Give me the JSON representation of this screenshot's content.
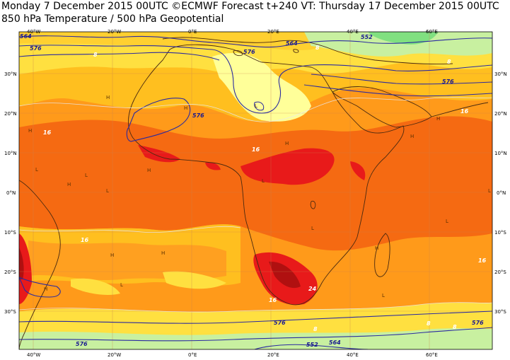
{
  "header": {
    "line1": "Monday 7 December 2015 00UTC ©ECMWF Forecast t+240 VT: Thursday 17 December 2015 00UTC",
    "line2": "850 hPa Temperature / 500 hPa Geopotential"
  },
  "map": {
    "lon_labels": [
      "40°W",
      "20°W",
      "0°E",
      "20°E",
      "40°E",
      "60°E"
    ],
    "lat_labels": [
      "30°N",
      "20°N",
      "10°N",
      "0°N",
      "10°S",
      "20°S",
      "30°S"
    ],
    "contour_labels_geopotential": [
      "564",
      "576",
      "576",
      "576",
      "564",
      "552",
      "576",
      "576",
      "576",
      "576",
      "564",
      "552",
      "576",
      "552"
    ],
    "contour_labels_temperature": [
      "8",
      "8",
      "8",
      "16",
      "16",
      "16",
      "16",
      "16",
      "24",
      "8",
      "8",
      "8",
      "16",
      "16"
    ],
    "pressure_markers": [
      "H",
      "L"
    ],
    "colors": {
      "green_light": "#c8f0a0",
      "green": "#80e080",
      "pale_yellow": "#ffff99",
      "yellow": "#ffe040",
      "light_orange": "#ffbf1f",
      "orange": "#ff9a1a",
      "dark_orange": "#f56a12",
      "red_orange": "#f04a0a",
      "red": "#e81a1a",
      "dark_red": "#b01010",
      "contour": "#2a2aa0",
      "coast": "#4a2a10",
      "grid": "#d08060"
    }
  }
}
